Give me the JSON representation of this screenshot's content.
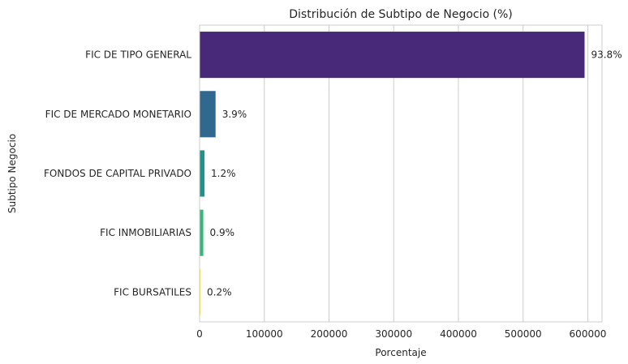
{
  "chart_data": {
    "type": "bar",
    "orientation": "horizontal",
    "title": "Distribución de Subtipo de Negocio (%)",
    "xlabel": "Porcentaje",
    "ylabel": "Subtipo Negocio",
    "xlim": [
      0,
      622000
    ],
    "xticks": [
      0,
      100000,
      200000,
      300000,
      400000,
      500000,
      600000
    ],
    "xtick_labels": [
      "0",
      "100000",
      "200000",
      "300000",
      "400000",
      "500000",
      "600000"
    ],
    "categories": [
      "FIC DE TIPO GENERAL",
      "FIC DE MERCADO MONETARIO",
      "FONDOS DE CAPITAL PRIVADO",
      "FIC INMOBILIARIAS",
      "FIC BURSATILES"
    ],
    "values": [
      595000,
      24700,
      7600,
      5700,
      1300
    ],
    "data_labels": [
      "93.8%",
      "3.9%",
      "1.2%",
      "0.9%",
      "0.2%"
    ],
    "colors": [
      "#482878",
      "#31688e",
      "#21918c",
      "#35b779",
      "#fde725"
    ],
    "grid": "vertical",
    "style": "seaborn-whitegrid"
  }
}
